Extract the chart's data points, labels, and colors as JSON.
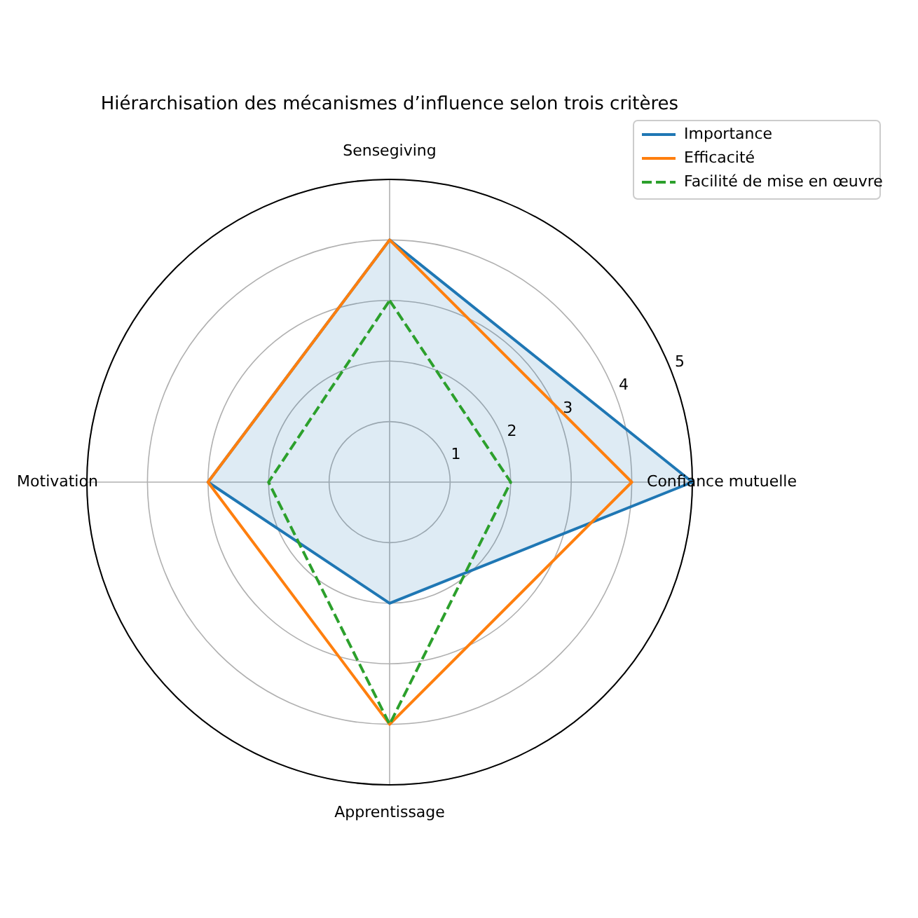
{
  "chart_data": {
    "type": "radar",
    "title": "Hiérarchisation des mécanismes d’influence selon trois critères",
    "categories": [
      "Sensegiving",
      "Confiance mutuelle",
      "Apprentissage",
      "Motivation"
    ],
    "series": [
      {
        "name": "Importance",
        "color": "#1f77b4",
        "type": "area",
        "values": [
          4,
          5,
          2,
          3
        ]
      },
      {
        "name": "Efficacité",
        "color": "#ff7f0e",
        "values": [
          4,
          4,
          4,
          3
        ]
      },
      {
        "name": "Facilité de mise en œuvre",
        "color": "#2ca02c",
        "line_style": "dashed",
        "values": [
          3,
          2,
          4,
          2
        ]
      }
    ],
    "ylim": [
      0,
      5
    ],
    "yticks": [
      1,
      2,
      3,
      4,
      5
    ],
    "grid": true,
    "legend": "top right"
  }
}
